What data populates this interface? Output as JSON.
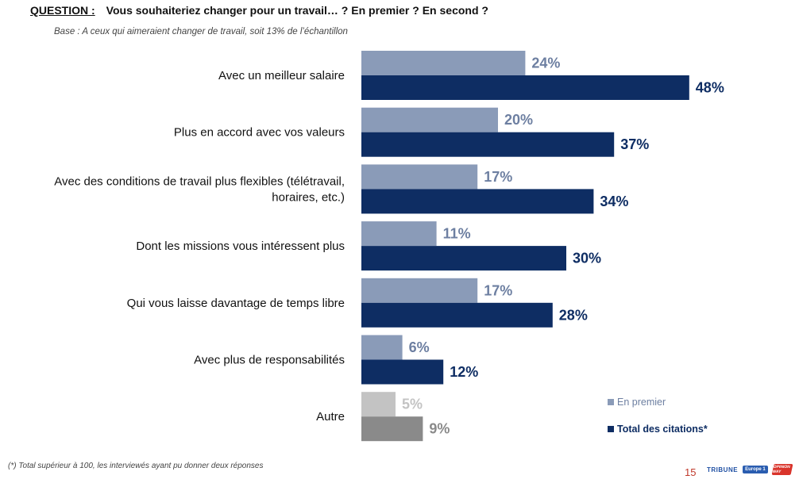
{
  "header": {
    "question_prefix": "QUESTION :",
    "question_text": "Vous souhaiteriez changer pour un travail… ? En premier ? En second ?",
    "base": "Base : A ceux qui aimeraient changer de travail, soit 13% de l’échantillon"
  },
  "chart_data": {
    "type": "bar",
    "orientation": "horizontal",
    "categories": [
      [
        "Avec un meilleur salaire"
      ],
      [
        "Plus en accord avec vos valeurs"
      ],
      [
        "Avec des conditions de travail plus flexibles (télétravail,",
        "horaires, etc.)"
      ],
      [
        "Dont les missions vous intéressent plus"
      ],
      [
        "Qui vous laisse davantage de temps libre"
      ],
      [
        "Avec plus de responsabilités"
      ],
      [
        "Autre"
      ]
    ],
    "series": [
      {
        "name": "En premier",
        "values": [
          24,
          20,
          17,
          11,
          17,
          6,
          5
        ],
        "labels": [
          "24%",
          "20%",
          "17%",
          "11%",
          "17%",
          "6%",
          "5%"
        ],
        "color": "#8a9bb8",
        "label_color": "#6d7fa1"
      },
      {
        "name": "Total des citations*",
        "values": [
          48,
          37,
          34,
          30,
          28,
          12,
          9
        ],
        "labels": [
          "48%",
          "37%",
          "34%",
          "30%",
          "28%",
          "12%",
          "9%"
        ],
        "color": "#0e2d63",
        "label_color": "#0e2d63"
      }
    ],
    "other_colors": {
      "first": "#c3c3c3",
      "total": "#8a8a8a",
      "first_label": "#c3c3c3",
      "total_label": "#8a8a8a"
    },
    "legend_position": "bottom-right"
  },
  "footer": {
    "footnote": "(*) Total supérieur à 100, les interviewés ayant pu donner deux réponses",
    "page_number": "15",
    "logo_1": "TRIBUNE",
    "logo_2": "Europe 1",
    "logo_3": "OPINION WAY"
  }
}
